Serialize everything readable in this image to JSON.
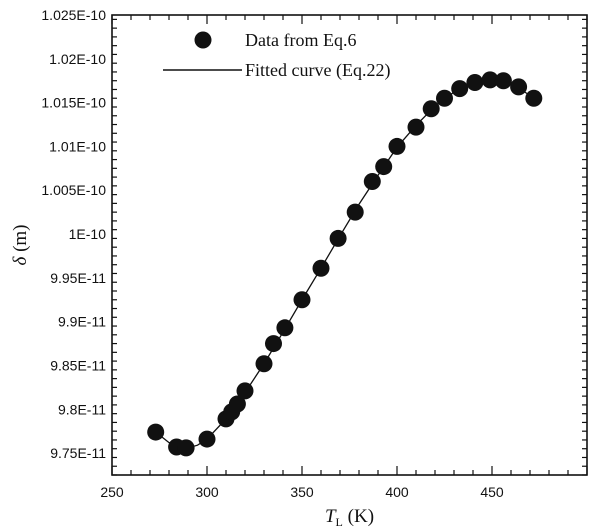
{
  "chart_data": {
    "type": "scatter",
    "xlabel": {
      "symbol": "T",
      "subscript": "L",
      "unit": " (K)"
    },
    "ylabel": {
      "symbol": "δ",
      "unit": " (m)"
    },
    "xlim": [
      250,
      500
    ],
    "ylim": [
      9.725e-11,
      1.025e-10
    ],
    "x_ticks": [
      250,
      300,
      350,
      400,
      450
    ],
    "y_ticks": [
      {
        "value": 9.75e-11,
        "label": "9.75E-11"
      },
      {
        "value": 9.8e-11,
        "label": "9.8E-11"
      },
      {
        "value": 9.85e-11,
        "label": "9.85E-11"
      },
      {
        "value": 9.9e-11,
        "label": "9.9E-11"
      },
      {
        "value": 9.95e-11,
        "label": "9.95E-11"
      },
      {
        "value": 1e-10,
        "label": "1E-10"
      },
      {
        "value": 1.005e-10,
        "label": "1.005E-10"
      },
      {
        "value": 1.01e-10,
        "label": "1.01E-10"
      },
      {
        "value": 1.015e-10,
        "label": "1.015E-10"
      },
      {
        "value": 1.02e-10,
        "label": "1.02E-10"
      },
      {
        "value": 1.025e-10,
        "label": "1.025E-10"
      }
    ],
    "legend": {
      "placement": "top-left",
      "entries": [
        "Data from Eq.6",
        "Fitted curve (Eq.22)"
      ]
    },
    "series": [
      {
        "name": "Data from Eq.6",
        "style": "markers",
        "color": "#111111",
        "x": [
          273,
          284,
          289,
          300,
          310,
          313,
          316,
          320,
          330,
          335,
          341,
          350,
          360,
          369,
          378,
          387,
          393,
          400,
          410,
          418,
          425,
          433,
          441,
          449,
          456,
          464,
          472
        ],
        "y": [
          9.774e-11,
          9.757e-11,
          9.756e-11,
          9.766e-11,
          9.789e-11,
          9.797e-11,
          9.806e-11,
          9.821e-11,
          9.852e-11,
          9.875e-11,
          9.893e-11,
          9.925e-11,
          9.961e-11,
          9.995e-11,
          1.0025e-10,
          1.006e-10,
          1.0077e-10,
          1.01e-10,
          1.0122e-10,
          1.0143e-10,
          1.0155e-10,
          1.0166e-10,
          1.0173e-10,
          1.0176e-10,
          1.0175e-10,
          1.0168e-10,
          1.0155e-10
        ]
      },
      {
        "name": "Fitted curve (Eq.22)",
        "style": "line",
        "color": "#111111",
        "x": [
          273,
          280,
          285,
          290,
          295,
          300,
          310,
          320,
          330,
          340,
          350,
          360,
          370,
          380,
          390,
          400,
          410,
          420,
          430,
          440,
          450,
          460,
          472
        ],
        "y": [
          9.774e-11,
          9.762e-11,
          9.757e-11,
          9.756e-11,
          9.759e-11,
          9.766e-11,
          9.789e-11,
          9.819e-11,
          9.852e-11,
          9.888e-11,
          9.925e-11,
          9.961e-11,
          9.998e-11,
          1.0034e-10,
          1.0067e-10,
          1.0099e-10,
          1.0124e-10,
          1.0146e-10,
          1.0162e-10,
          1.0172e-10,
          1.0176e-10,
          1.0173e-10,
          1.0155e-10
        ]
      }
    ]
  }
}
